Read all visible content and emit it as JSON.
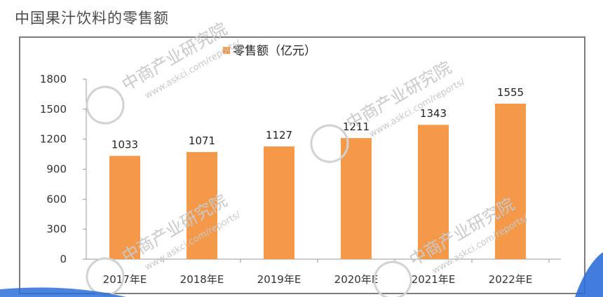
{
  "slide": {
    "title": "中国果汁饮料的零售额"
  },
  "colors": {
    "bar": "#f4994a",
    "axis": "#999999",
    "swoosh": "#2c6fd9"
  },
  "chart_data": {
    "type": "bar",
    "title": "",
    "xlabel": "",
    "ylabel": "",
    "legend": {
      "position": "top",
      "entries": [
        "零售额（亿元）"
      ]
    },
    "categories": [
      "2017年E",
      "2018年E",
      "2019年E",
      "2020年E",
      "2021年E",
      "2022年E"
    ],
    "series": [
      {
        "name": "零售额（亿元）",
        "values": [
          1033,
          1071,
          1127,
          1211,
          1343,
          1555
        ]
      }
    ],
    "ylim": [
      0,
      1800
    ],
    "yticks": [
      0,
      300,
      600,
      900,
      1200,
      1500,
      1800
    ],
    "grid": false,
    "data_labels": true
  },
  "watermark": {
    "brand": "中商产业研究院",
    "url": "www.askci.com/reports/"
  }
}
